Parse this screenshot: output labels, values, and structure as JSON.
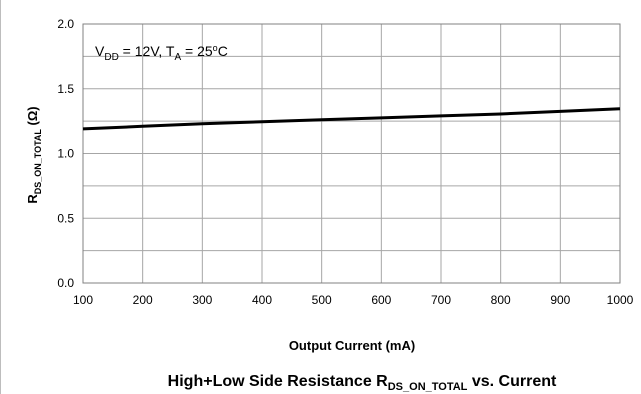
{
  "chart_data": {
    "type": "line",
    "x": [
      100,
      200,
      300,
      400,
      500,
      600,
      700,
      800,
      900,
      1000
    ],
    "series": [
      {
        "values": [
          1.19,
          1.21,
          1.23,
          1.245,
          1.26,
          1.275,
          1.29,
          1.305,
          1.325,
          1.345
        ],
        "color": "#000000"
      }
    ],
    "xlim": [
      100,
      1000
    ],
    "ylim": [
      0,
      2.0
    ],
    "x_ticks": [
      "100",
      "200",
      "300",
      "400",
      "500",
      "600",
      "700",
      "800",
      "900",
      "1000"
    ],
    "y_ticks": [
      "0.0",
      "0.5",
      "1.0",
      "1.5",
      "2.0"
    ],
    "grid": true,
    "xlabel": "Output Current (mA)",
    "ylabel": {
      "main": "R",
      "sub": "DS_ON_TOTAL",
      "unit": " (Ω)"
    },
    "annotation": {
      "v": "V",
      "v_sub": "DD",
      "v_rest": " = 12V, T",
      "t_sub": "A",
      "t_rest": " = 25",
      "deg": "o",
      "unit": "C"
    },
    "caption": {
      "prefix": "High+Low Side Resistance R",
      "sub": "DS_ON_TOTAL",
      "suffix": " vs. Current"
    }
  }
}
